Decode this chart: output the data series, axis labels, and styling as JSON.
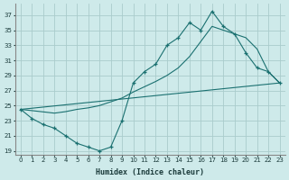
{
  "xlabel": "Humidex (Indice chaleur)",
  "bg_color": "#ceeaea",
  "grid_color": "#aacccc",
  "line_color": "#1a7070",
  "xlim": [
    -0.5,
    23.5
  ],
  "ylim": [
    18.5,
    38.5
  ],
  "xticks": [
    0,
    1,
    2,
    3,
    4,
    5,
    6,
    7,
    8,
    9,
    10,
    11,
    12,
    13,
    14,
    15,
    16,
    17,
    18,
    19,
    20,
    21,
    22,
    23
  ],
  "yticks": [
    19,
    21,
    23,
    25,
    27,
    29,
    31,
    33,
    35,
    37
  ],
  "line1_x": [
    0,
    1,
    2,
    3,
    4,
    5,
    6,
    7,
    8,
    9,
    10,
    11,
    12,
    13,
    14,
    15,
    16,
    17,
    18,
    19,
    20,
    21,
    22,
    23
  ],
  "line1_y": [
    24.5,
    23.3,
    22.5,
    22.0,
    21.0,
    20.0,
    19.5,
    19.0,
    19.5,
    23.0,
    28.0,
    29.5,
    30.5,
    33.0,
    34.0,
    36.0,
    35.0,
    37.5,
    35.5,
    34.5,
    32.0,
    30.0,
    29.5,
    28.0
  ],
  "line2_x": [
    0,
    3,
    4,
    5,
    6,
    7,
    8,
    9,
    10,
    11,
    12,
    13,
    14,
    15,
    16,
    17,
    18,
    19,
    20,
    21,
    22,
    23
  ],
  "line2_y": [
    24.5,
    24.0,
    24.2,
    24.5,
    24.7,
    25.0,
    25.5,
    26.0,
    26.8,
    27.5,
    28.2,
    29.0,
    30.0,
    31.5,
    33.5,
    35.5,
    35.0,
    34.5,
    34.0,
    32.5,
    29.5,
    28.0
  ],
  "line3_x": [
    0,
    23
  ],
  "line3_y": [
    24.5,
    28.0
  ]
}
